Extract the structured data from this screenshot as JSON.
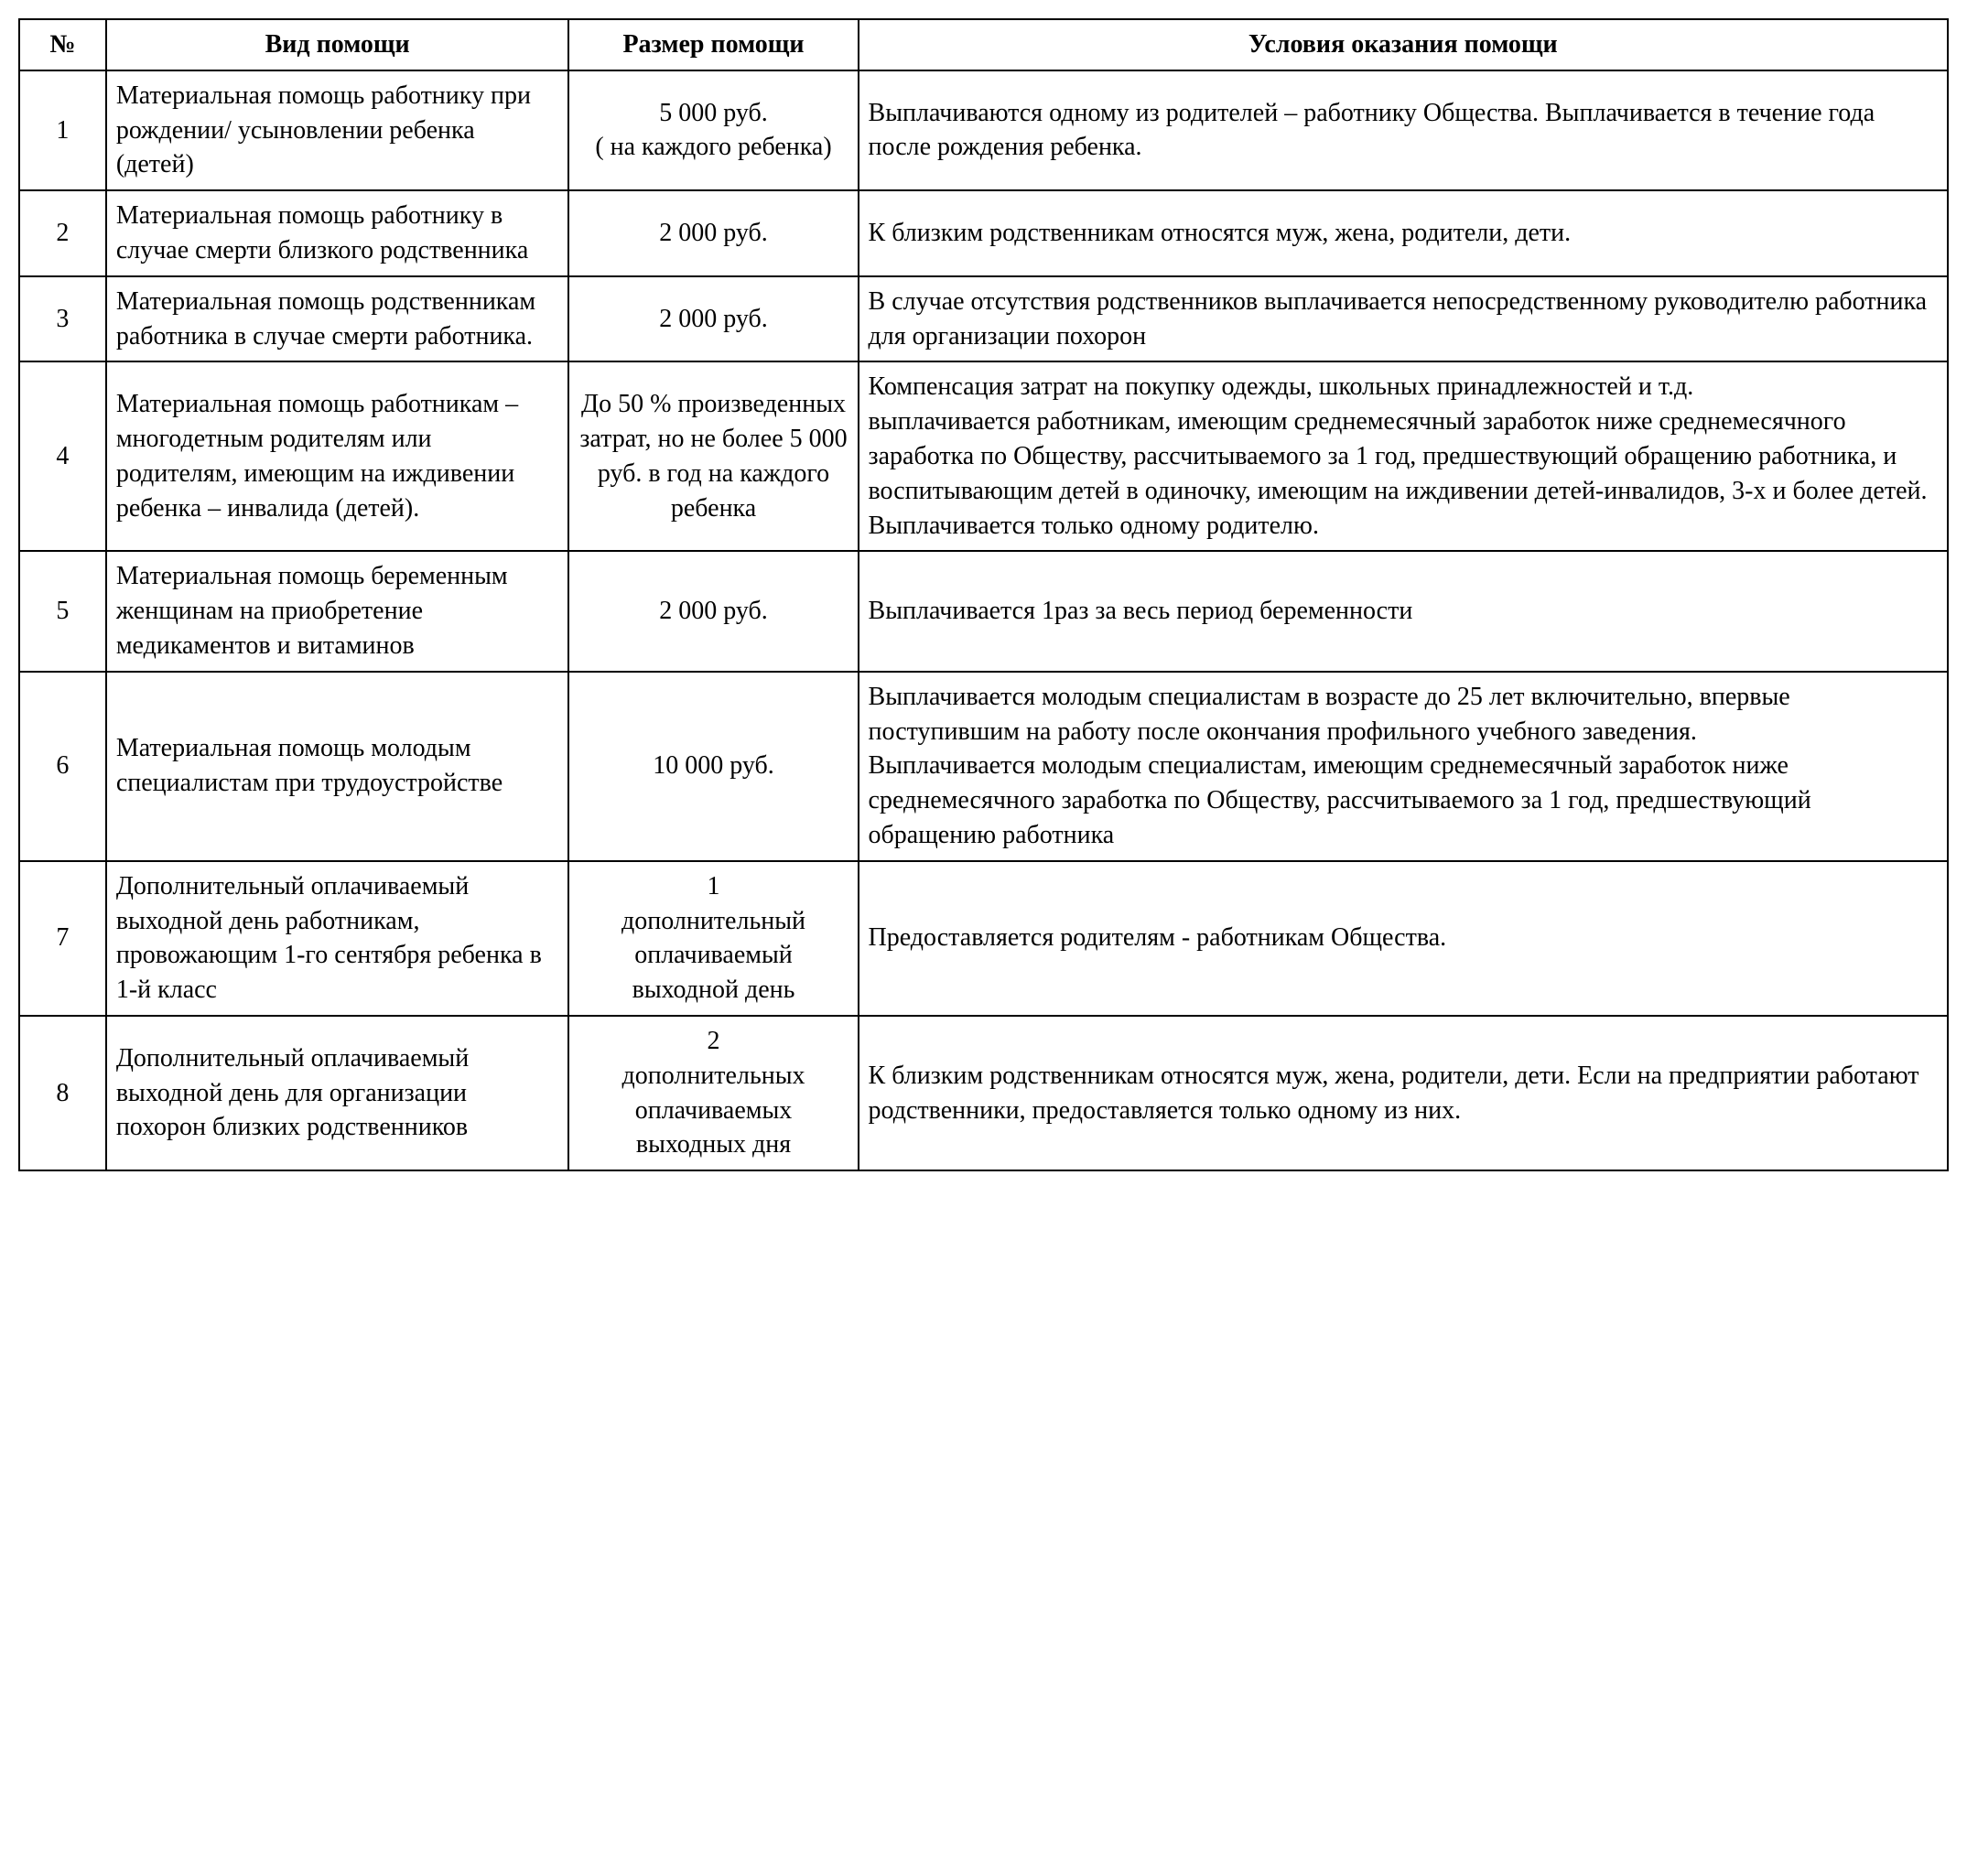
{
  "table": {
    "headers": {
      "num": "№",
      "type": "Вид помощи",
      "amount": "Размер помощи",
      "conditions": "Условия оказания помощи"
    },
    "rows": [
      {
        "num": "1",
        "type": " Материальная помощь работнику при рождении/ усыновлении ребенка (детей)",
        "amount_l1": "5 000 руб.",
        "amount_l2": "( на каждого ребенка)",
        "conditions": "Выплачиваются одному из родителей – работнику Общества. Выплачивается в течение года после рождения ребенка."
      },
      {
        "num": "2",
        "type": "Материальная помощь работнику в случае смерти близкого родственника",
        "amount_l1": "2 000 руб.",
        "amount_l2": "",
        "conditions": "К близким родственникам относятся муж, жена, родители, дети."
      },
      {
        "num": "3",
        "type": "Материальная помощь родственникам  работника в случае смерти работника.",
        "amount_l1": "2 000 руб.",
        "amount_l2": "",
        "conditions": "В случае отсутствия родственников выплачивается непосредственному руководителю работника для организации похорон"
      },
      {
        "num": "4",
        "type": "Материальная помощь работникам – многодетным родителям или родителям, имеющим на иждивении ребенка – инвалида (детей).",
        "amount_l1": "До 50 % произведенных затрат, но не более 5 000 руб. в год на каждого ребенка",
        "amount_l2": "",
        "conditions": "Компенсация затрат на покупку одежды, школьных принадлежностей и т.д.\nвыплачивается работникам, имеющим  среднемесячный заработок ниже  среднемесячного  заработка по Обществу, рассчитываемого за 1 год, предшествующий обращению работника, и воспитывающим детей в одиночку, имеющим на иждивении детей-инвалидов, 3-х и более детей. Выплачивается только одному родителю."
      },
      {
        "num": "5",
        "type": " Материальная помощь беременным женщинам на приобретение медикаментов  и витаминов",
        "amount_l1": "2 000 руб.",
        "amount_l2": "",
        "conditions": "Выплачивается 1раз за весь период беременности"
      },
      {
        "num": "6",
        "type": "Материальная помощь молодым специалистам при трудоустройстве",
        "amount_l1": "10 000 руб.",
        "amount_l2": "",
        "conditions": "Выплачивается молодым специалистам в возрасте до 25 лет включительно, впервые поступившим на работу после окончания профильного учебного заведения.\nВыплачивается молодым специалистам,  имеющим среднемесячный заработок ниже  среднемесячного заработка по Обществу, рассчитываемого за 1 год, предшествующий обращению работника"
      },
      {
        "num": "7",
        "type": "Дополнительный оплачиваемый выходной день работникам, провожающим 1-го сентября ребенка в  1-й класс",
        "amount_l1": "1",
        "amount_l2": "дополнительный оплачиваемый выходной день",
        "conditions": "Предоставляется родителям -  работникам Общества."
      },
      {
        "num": "8",
        "type": "Дополнительный оплачиваемый выходной день для организации похорон  близких родственников",
        "amount_l1": "2",
        "amount_l2": "дополнительных оплачиваемых выходных  дня",
        "conditions": "К близким родственникам относятся муж, жена, родители, дети. Если на предприятии работают родственники, предоставляется только одному из них."
      }
    ]
  },
  "style": {
    "font_family": "Times New Roman",
    "font_size_pt": 14,
    "border_color": "#000000",
    "background_color": "#ffffff",
    "text_color": "#000000",
    "column_widths_pct": [
      4.5,
      24,
      15,
      56.5
    ]
  }
}
